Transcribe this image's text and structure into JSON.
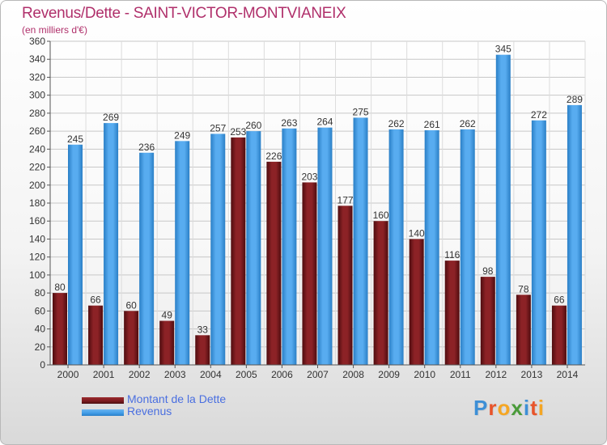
{
  "header": {
    "title": "Revenus/Dette - SAINT-VICTOR-MONTVIANEIX",
    "subtitle": "(en milliers d'€)"
  },
  "legend": {
    "items": [
      {
        "label": "Montant de la Dette",
        "color": "#7a1a1e"
      },
      {
        "label": "Revenus",
        "color": "#3f9be6"
      }
    ]
  },
  "logo": {
    "letters": [
      "P",
      "r",
      "o",
      "x",
      "i",
      "t",
      "i"
    ],
    "colors": [
      "#3d8fd6",
      "#e8542a",
      "#f5a623",
      "#4a9b3a",
      "#3d8fd6",
      "#e8542a",
      "#f5a623"
    ]
  },
  "colors": {
    "debt": "#7a1a1e",
    "revenue": "#3f9be6",
    "title": "#b0306b"
  },
  "chart_data": {
    "type": "bar",
    "categories": [
      "2000",
      "2001",
      "2002",
      "2003",
      "2004",
      "2005",
      "2006",
      "2007",
      "2008",
      "2009",
      "2010",
      "2011",
      "2012",
      "2013",
      "2014"
    ],
    "series": [
      {
        "name": "Montant de la Dette",
        "values": [
          80,
          66,
          60,
          49,
          33,
          253,
          226,
          203,
          177,
          160,
          140,
          116,
          98,
          78,
          66
        ]
      },
      {
        "name": "Revenus",
        "values": [
          245,
          269,
          236,
          249,
          257,
          260,
          263,
          264,
          275,
          262,
          261,
          262,
          345,
          272,
          289
        ]
      }
    ],
    "ylim": [
      0,
      360
    ],
    "yticks": [
      0,
      20,
      40,
      60,
      80,
      100,
      120,
      140,
      160,
      180,
      200,
      220,
      240,
      260,
      280,
      300,
      320,
      340,
      360
    ],
    "grid": true,
    "legend_position": "bottom-left"
  }
}
